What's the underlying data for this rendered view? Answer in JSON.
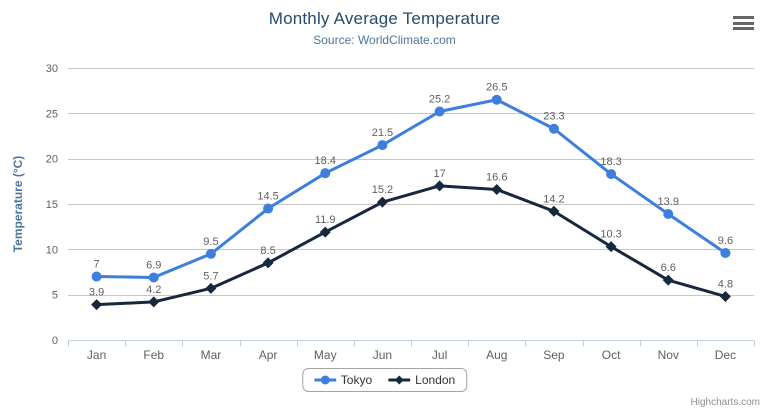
{
  "chart_data": {
    "type": "line",
    "title": "Monthly Average Temperature",
    "subtitle": "Source: WorldClimate.com",
    "categories": [
      "Jan",
      "Feb",
      "Mar",
      "Apr",
      "May",
      "Jun",
      "Jul",
      "Aug",
      "Sep",
      "Oct",
      "Nov",
      "Dec"
    ],
    "xlabel": "",
    "ylabel": "Temperature (°C)",
    "ylim": [
      0,
      30
    ],
    "yticks": [
      0,
      5,
      10,
      15,
      20,
      25,
      30
    ],
    "grid": true,
    "legend_position": "bottom-center",
    "data_labels": true,
    "series": [
      {
        "name": "Tokyo",
        "marker": "circle",
        "color": "#3e7fde",
        "values": [
          7.0,
          6.9,
          9.5,
          14.5,
          18.4,
          21.5,
          25.2,
          26.5,
          23.3,
          18.3,
          13.9,
          9.6
        ]
      },
      {
        "name": "London",
        "marker": "diamond",
        "color": "#17273e",
        "values": [
          3.9,
          4.2,
          5.7,
          8.5,
          11.9,
          15.2,
          17.0,
          16.6,
          14.2,
          10.3,
          6.6,
          4.8
        ]
      }
    ]
  },
  "export_menu": {
    "icon": "hamburger-menu-icon"
  },
  "credits": {
    "label": "Highcharts.com"
  },
  "colors": {
    "title": "#274b6d",
    "subtitle": "#4d759e",
    "axis_title": "#4d759e",
    "axis_labels": "#606060",
    "data_labels": "#606060",
    "gridline": "#c8c8c8",
    "xaxis_line": "#c0d0e0",
    "legend_border": "#a5a5a5",
    "legend_text": "#333333",
    "credits": "#909090",
    "menu_icon": "#666666"
  }
}
